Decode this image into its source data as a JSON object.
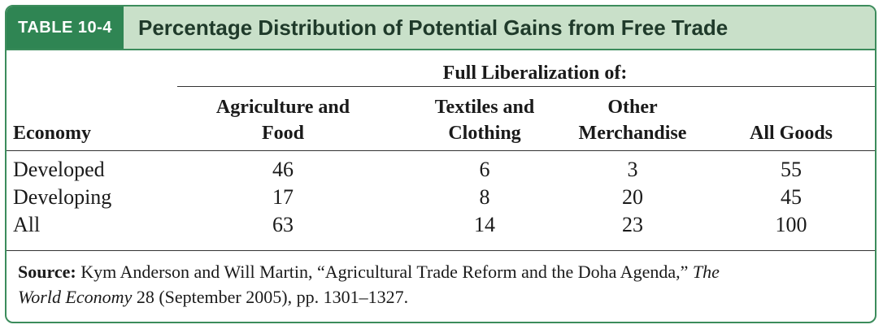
{
  "table": {
    "number": "TABLE 10-4",
    "title": "Percentage Distribution of Potential Gains from Free Trade",
    "group_header": "Full Liberalization of:",
    "columns": {
      "economy": "Economy",
      "agri_line1": "Agriculture and",
      "agri_line2": "Food",
      "textiles_line1": "Textiles and",
      "textiles_line2": "Clothing",
      "other_line1": "Other",
      "other_line2": "Merchandise",
      "all_goods": "All Goods"
    },
    "rows": [
      {
        "economy": "Developed",
        "agriculture_food": "46",
        "textiles_clothing": "6",
        "other_merchandise": "3",
        "all_goods": "55"
      },
      {
        "economy": "Developing",
        "agriculture_food": "17",
        "textiles_clothing": "8",
        "other_merchandise": "20",
        "all_goods": "45"
      },
      {
        "economy": "All",
        "agriculture_food": "63",
        "textiles_clothing": "14",
        "other_merchandise": "23",
        "all_goods": "100"
      }
    ],
    "source": {
      "label": "Source:",
      "text1": " Kym Anderson and Will Martin, “Agricultural Trade Reform and the Doha Agenda,” ",
      "journal_part1": "The",
      "journal_part2": "World Economy",
      "text2": " 28 (September 2005), pp. 1301–1327."
    }
  },
  "colors": {
    "border": "#3c8c5c",
    "tag_bg": "#2f8553",
    "header_bg": "#c9e0c9"
  }
}
